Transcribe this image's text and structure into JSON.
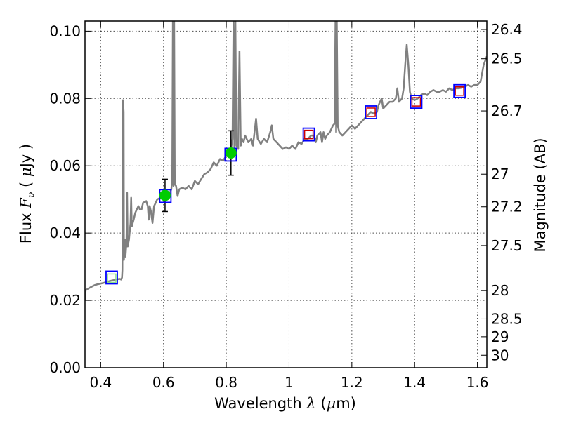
{
  "chart_data": {
    "type": "line",
    "xlabel": {
      "text": "Wavelength",
      "symbol": "λ",
      "unit_open": " (",
      "unit_mu": "μ",
      "unit_rest": "m)"
    },
    "ylabel": {
      "text": "Flux",
      "symbol": "F",
      "symbol_sub": "ν",
      "unit_open": "( ",
      "unit_mu": "μ",
      "unit_rest": "Jy )"
    },
    "y2label": "Magnitude (AB)",
    "xlim": [
      0.35,
      1.63
    ],
    "ylim": [
      0.0,
      0.103
    ],
    "grid": true,
    "x_ticks": [
      {
        "value": 0.4,
        "label": "0.4"
      },
      {
        "value": 0.6,
        "label": "0.6"
      },
      {
        "value": 0.8,
        "label": "0.8"
      },
      {
        "value": 1.0,
        "label": "1"
      },
      {
        "value": 1.2,
        "label": "1.2"
      },
      {
        "value": 1.4,
        "label": "1.4"
      },
      {
        "value": 1.6,
        "label": "1.6"
      }
    ],
    "y_ticks": [
      {
        "value": 0.0,
        "label": "0.00"
      },
      {
        "value": 0.02,
        "label": "0.02"
      },
      {
        "value": 0.04,
        "label": "0.04"
      },
      {
        "value": 0.06,
        "label": "0.06"
      },
      {
        "value": 0.08,
        "label": "0.08"
      },
      {
        "value": 0.1,
        "label": "0.10"
      }
    ],
    "y2_ticks": [
      {
        "label": "26.4",
        "flux": 0.1005
      },
      {
        "label": "26.5",
        "flux": 0.0918
      },
      {
        "label": "26.7",
        "flux": 0.0763
      },
      {
        "label": "27",
        "flux": 0.0575
      },
      {
        "label": "27.2",
        "flux": 0.0478
      },
      {
        "label": "27.5",
        "flux": 0.0363
      },
      {
        "label": "28",
        "flux": 0.0229
      },
      {
        "label": "28.5",
        "flux": 0.0145
      },
      {
        "label": "29",
        "flux": 0.0092
      },
      {
        "label": "30",
        "flux": 0.0037
      }
    ],
    "model_spectrum": {
      "color": "#808080",
      "points": [
        [
          0.35,
          0.02
        ],
        [
          0.352,
          0.023
        ],
        [
          0.36,
          0.0235
        ],
        [
          0.37,
          0.024
        ],
        [
          0.38,
          0.0245
        ],
        [
          0.39,
          0.0248
        ],
        [
          0.4,
          0.025
        ],
        [
          0.41,
          0.0252
        ],
        [
          0.42,
          0.0255
        ],
        [
          0.43,
          0.0258
        ],
        [
          0.44,
          0.026
        ],
        [
          0.45,
          0.0262
        ],
        [
          0.46,
          0.0264
        ],
        [
          0.465,
          0.0262
        ],
        [
          0.468,
          0.0268
        ],
        [
          0.469,
          0.029
        ],
        [
          0.471,
          0.0795
        ],
        [
          0.473,
          0.076
        ],
        [
          0.474,
          0.032
        ],
        [
          0.477,
          0.038
        ],
        [
          0.479,
          0.033
        ],
        [
          0.482,
          0.037
        ],
        [
          0.484,
          0.052
        ],
        [
          0.486,
          0.036
        ],
        [
          0.49,
          0.038
        ],
        [
          0.495,
          0.043
        ],
        [
          0.497,
          0.0505
        ],
        [
          0.499,
          0.042
        ],
        [
          0.505,
          0.044
        ],
        [
          0.51,
          0.046
        ],
        [
          0.515,
          0.047
        ],
        [
          0.52,
          0.048
        ],
        [
          0.525,
          0.047
        ],
        [
          0.53,
          0.047
        ],
        [
          0.535,
          0.049
        ],
        [
          0.545,
          0.0495
        ],
        [
          0.55,
          0.048
        ],
        [
          0.553,
          0.044
        ],
        [
          0.556,
          0.048
        ],
        [
          0.56,
          0.0465
        ],
        [
          0.565,
          0.043
        ],
        [
          0.57,
          0.048
        ],
        [
          0.58,
          0.05
        ],
        [
          0.59,
          0.0505
        ],
        [
          0.6,
          0.051
        ],
        [
          0.61,
          0.0515
        ],
        [
          0.62,
          0.052
        ],
        [
          0.625,
          0.053
        ],
        [
          0.628,
          0.056
        ],
        [
          0.63,
          0.103
        ],
        [
          0.632,
          0.054
        ],
        [
          0.634,
          0.103
        ],
        [
          0.636,
          0.0545
        ],
        [
          0.64,
          0.054
        ],
        [
          0.645,
          0.051
        ],
        [
          0.65,
          0.053
        ],
        [
          0.66,
          0.0535
        ],
        [
          0.67,
          0.053
        ],
        [
          0.68,
          0.054
        ],
        [
          0.69,
          0.053
        ],
        [
          0.7,
          0.0555
        ],
        [
          0.71,
          0.0545
        ],
        [
          0.72,
          0.056
        ],
        [
          0.73,
          0.0575
        ],
        [
          0.74,
          0.058
        ],
        [
          0.75,
          0.059
        ],
        [
          0.76,
          0.061
        ],
        [
          0.77,
          0.06
        ],
        [
          0.78,
          0.062
        ],
        [
          0.79,
          0.0615
        ],
        [
          0.8,
          0.063
        ],
        [
          0.81,
          0.064
        ],
        [
          0.815,
          0.065
        ],
        [
          0.82,
          0.068
        ],
        [
          0.823,
          0.103
        ],
        [
          0.826,
          0.065
        ],
        [
          0.829,
          0.103
        ],
        [
          0.832,
          0.066
        ],
        [
          0.838,
          0.065
        ],
        [
          0.842,
          0.094
        ],
        [
          0.846,
          0.066
        ],
        [
          0.85,
          0.068
        ],
        [
          0.855,
          0.067
        ],
        [
          0.86,
          0.069
        ],
        [
          0.87,
          0.067
        ],
        [
          0.88,
          0.068
        ],
        [
          0.885,
          0.066
        ],
        [
          0.89,
          0.07
        ],
        [
          0.895,
          0.074
        ],
        [
          0.9,
          0.068
        ],
        [
          0.91,
          0.0665
        ],
        [
          0.92,
          0.068
        ],
        [
          0.93,
          0.067
        ],
        [
          0.94,
          0.07
        ],
        [
          0.945,
          0.072
        ],
        [
          0.95,
          0.068
        ],
        [
          0.96,
          0.067
        ],
        [
          0.97,
          0.066
        ],
        [
          0.98,
          0.065
        ],
        [
          0.99,
          0.0655
        ],
        [
          1.0,
          0.065
        ],
        [
          1.01,
          0.066
        ],
        [
          1.02,
          0.065
        ],
        [
          1.03,
          0.067
        ],
        [
          1.04,
          0.0665
        ],
        [
          1.05,
          0.068
        ],
        [
          1.06,
          0.068
        ],
        [
          1.07,
          0.069
        ],
        [
          1.08,
          0.069
        ],
        [
          1.085,
          0.067
        ],
        [
          1.09,
          0.069
        ],
        [
          1.1,
          0.07
        ],
        [
          1.105,
          0.067
        ],
        [
          1.11,
          0.07
        ],
        [
          1.115,
          0.068
        ],
        [
          1.12,
          0.069
        ],
        [
          1.13,
          0.07
        ],
        [
          1.14,
          0.072
        ],
        [
          1.145,
          0.0725
        ],
        [
          1.148,
          0.103
        ],
        [
          1.15,
          0.07
        ],
        [
          1.152,
          0.103
        ],
        [
          1.155,
          0.072
        ],
        [
          1.16,
          0.07
        ],
        [
          1.17,
          0.069
        ],
        [
          1.18,
          0.07
        ],
        [
          1.19,
          0.071
        ],
        [
          1.2,
          0.072
        ],
        [
          1.21,
          0.071
        ],
        [
          1.22,
          0.072
        ],
        [
          1.23,
          0.073
        ],
        [
          1.24,
          0.074
        ],
        [
          1.25,
          0.075
        ],
        [
          1.26,
          0.076
        ],
        [
          1.27,
          0.0755
        ],
        [
          1.28,
          0.076
        ],
        [
          1.285,
          0.078
        ],
        [
          1.29,
          0.079
        ],
        [
          1.295,
          0.08
        ],
        [
          1.3,
          0.077
        ],
        [
          1.31,
          0.078
        ],
        [
          1.32,
          0.079
        ],
        [
          1.33,
          0.079
        ],
        [
          1.34,
          0.08
        ],
        [
          1.345,
          0.083
        ],
        [
          1.35,
          0.079
        ],
        [
          1.36,
          0.08
        ],
        [
          1.365,
          0.083
        ],
        [
          1.37,
          0.09
        ],
        [
          1.375,
          0.096
        ],
        [
          1.38,
          0.09
        ],
        [
          1.385,
          0.082
        ],
        [
          1.39,
          0.08
        ],
        [
          1.4,
          0.0795
        ],
        [
          1.41,
          0.08
        ],
        [
          1.42,
          0.081
        ],
        [
          1.43,
          0.0815
        ],
        [
          1.44,
          0.081
        ],
        [
          1.45,
          0.082
        ],
        [
          1.46,
          0.0825
        ],
        [
          1.47,
          0.082
        ],
        [
          1.48,
          0.082
        ],
        [
          1.49,
          0.0825
        ],
        [
          1.5,
          0.082
        ],
        [
          1.51,
          0.083
        ],
        [
          1.52,
          0.0825
        ],
        [
          1.53,
          0.083
        ],
        [
          1.54,
          0.083
        ],
        [
          1.55,
          0.0832
        ],
        [
          1.56,
          0.0835
        ],
        [
          1.57,
          0.084
        ],
        [
          1.58,
          0.0835
        ],
        [
          1.59,
          0.084
        ],
        [
          1.6,
          0.084
        ],
        [
          1.61,
          0.085
        ],
        [
          1.62,
          0.09
        ],
        [
          1.63,
          0.0925
        ]
      ]
    },
    "observed_points": {
      "color": "#00cc00",
      "points": [
        {
          "x": 0.605,
          "y": 0.0512,
          "err": 0.0048
        },
        {
          "x": 0.815,
          "y": 0.0638,
          "err": 0.0066
        }
      ]
    },
    "model_photometry": {
      "color": "#0000ff",
      "points": [
        {
          "x": 0.435,
          "y": 0.0268
        },
        {
          "x": 0.606,
          "y": 0.051
        },
        {
          "x": 0.814,
          "y": 0.0633
        },
        {
          "x": 1.063,
          "y": 0.0693
        },
        {
          "x": 1.261,
          "y": 0.0759
        },
        {
          "x": 1.405,
          "y": 0.079
        },
        {
          "x": 1.543,
          "y": 0.0822
        }
      ]
    },
    "upper_limit_points": {
      "color": "#cc0000",
      "points": [
        {
          "x": 1.063,
          "y": 0.0693
        },
        {
          "x": 1.261,
          "y": 0.0759
        },
        {
          "x": 1.405,
          "y": 0.079
        },
        {
          "x": 1.543,
          "y": 0.0822
        }
      ]
    },
    "faint_points": {
      "color": "#88dd88",
      "points": [
        {
          "x": 0.435,
          "y": 0.0266
        }
      ]
    }
  }
}
